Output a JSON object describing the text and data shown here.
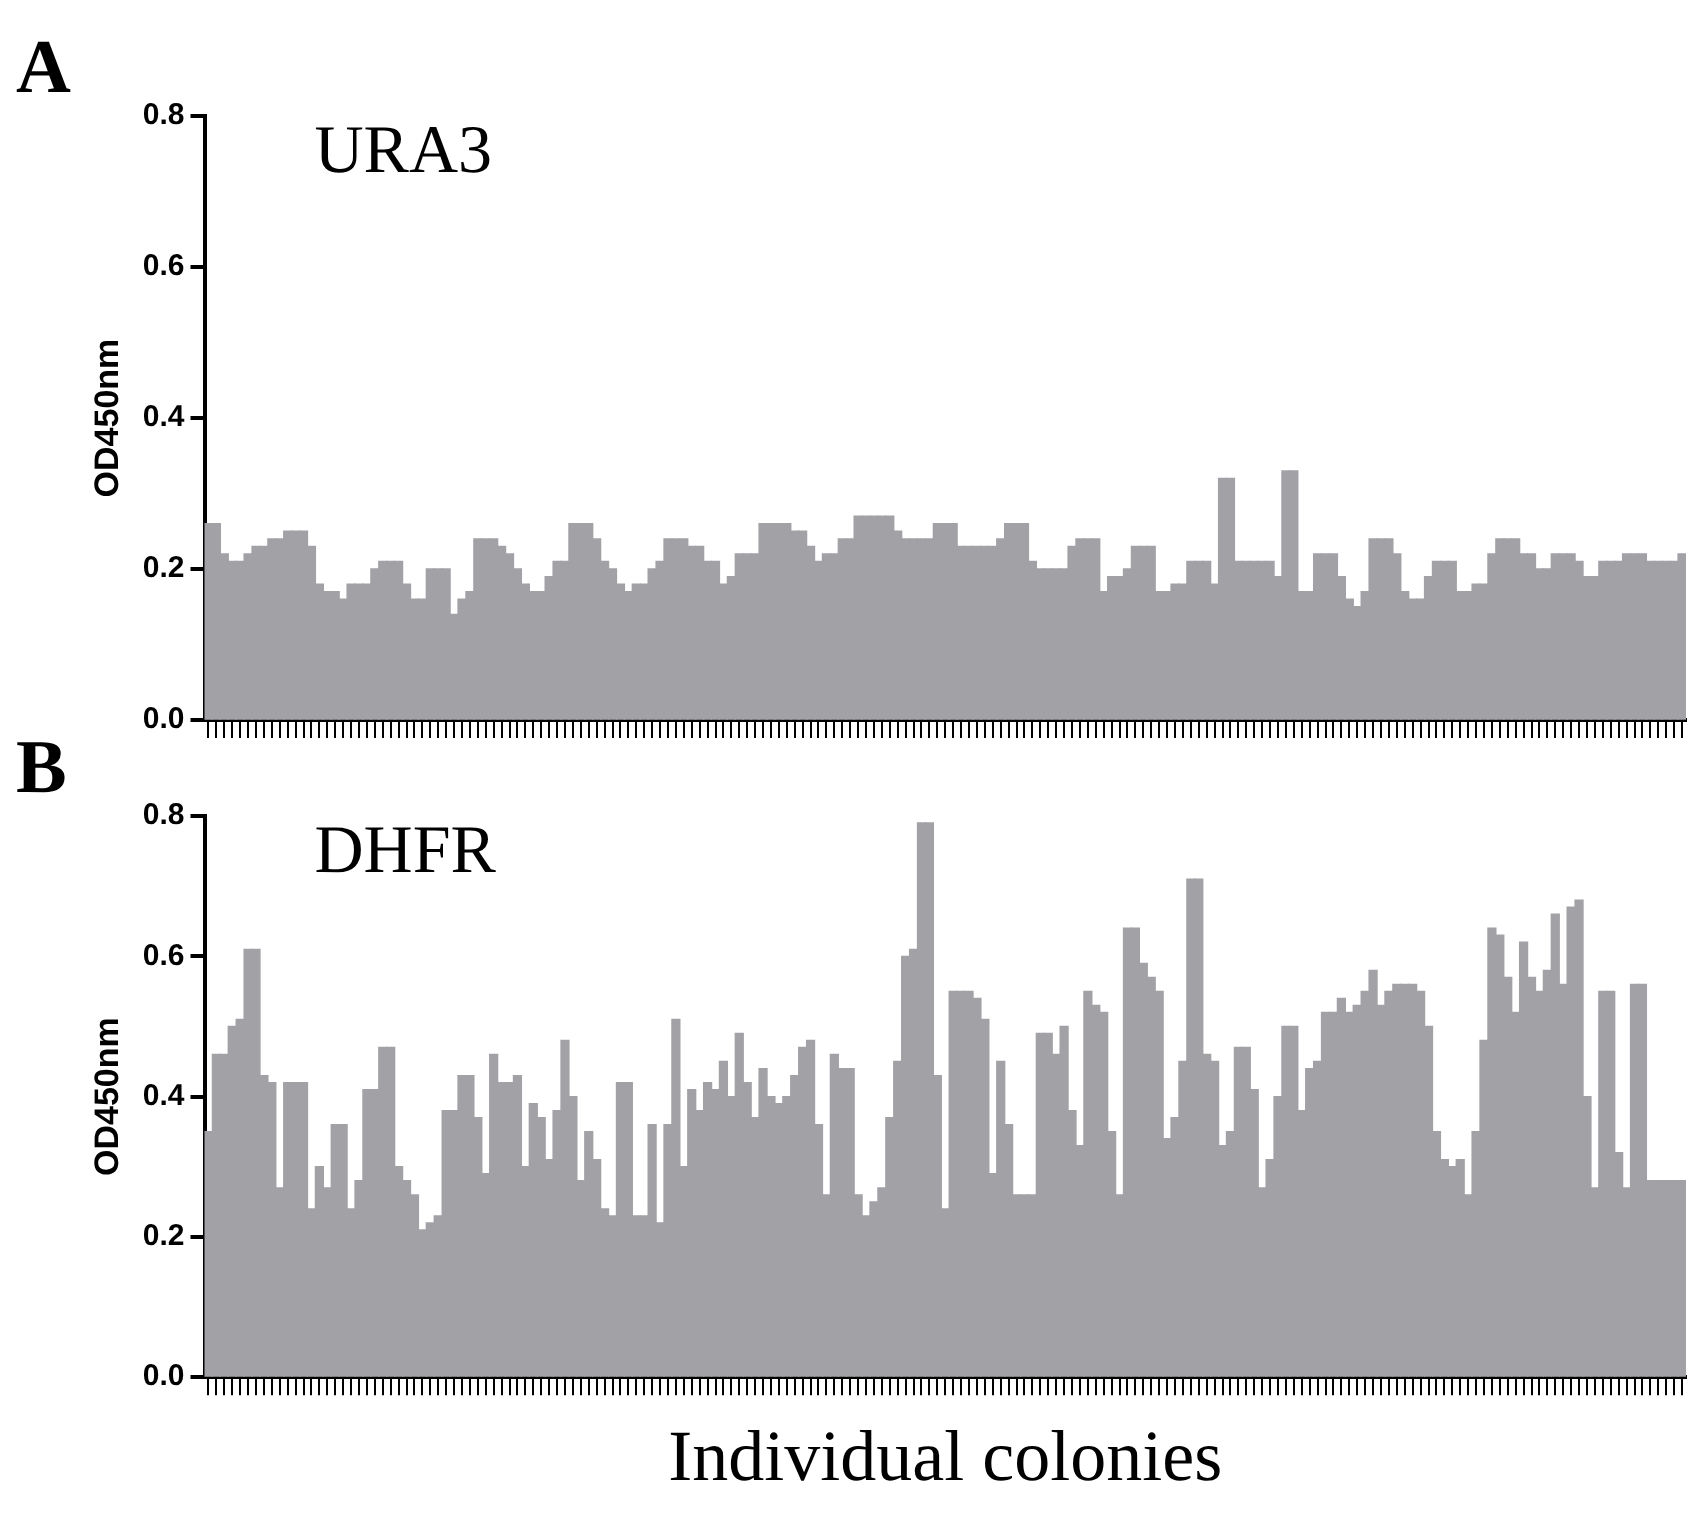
{
  "chart_data": [
    {
      "type": "bar",
      "title": "URA3",
      "ylabel": "OD450nm",
      "annotations": [
        "A"
      ],
      "color": "#a2a1a6",
      "ylim": [
        0,
        0.8
      ],
      "yticks": [
        {
          "value": 0,
          "label": "0.0"
        },
        {
          "value": 0.2,
          "label": "0.2"
        },
        {
          "value": 0.4,
          "label": "0.4"
        },
        {
          "value": 0.6,
          "label": "0.6"
        },
        {
          "value": 0.8,
          "label": "0.8"
        }
      ],
      "grid": false,
      "legend": false,
      "categories": [
        null,
        null,
        null,
        null,
        null,
        null,
        null,
        null,
        null,
        null,
        null,
        null,
        null,
        null,
        null,
        null,
        null,
        null,
        null,
        null,
        null,
        null,
        null,
        null,
        null,
        null,
        null,
        null,
        null,
        null,
        null,
        null,
        null,
        null,
        null,
        null,
        null,
        null,
        null,
        null,
        null,
        null,
        null,
        null,
        null,
        null,
        null,
        null,
        null,
        null,
        null,
        null,
        null,
        null,
        null,
        null,
        null,
        null,
        null,
        null,
        null,
        null,
        null,
        null,
        null,
        null,
        null,
        null,
        null,
        null,
        null,
        null,
        null,
        null,
        null,
        null,
        null,
        null,
        null,
        null,
        null,
        null,
        null,
        null,
        null,
        null,
        null,
        null,
        null,
        null,
        null,
        null,
        null,
        null,
        null,
        null,
        null,
        null,
        null,
        null,
        null,
        null,
        null,
        null,
        null,
        null,
        null,
        null,
        null,
        null,
        null,
        null,
        null,
        null,
        null,
        null,
        null,
        null,
        null,
        null,
        null,
        null,
        null,
        null,
        null,
        null,
        null,
        null,
        null,
        null,
        null,
        null,
        null,
        null,
        null,
        null,
        null,
        null,
        null,
        null,
        null,
        null,
        null,
        null,
        null,
        null,
        null,
        null,
        null,
        null,
        null,
        null,
        null,
        null,
        null,
        null,
        null,
        null,
        null,
        null,
        null,
        null,
        null,
        null,
        null,
        null,
        null,
        null,
        null,
        null,
        null,
        null,
        null,
        null,
        null,
        null,
        null,
        null,
        null,
        null,
        null,
        null,
        null,
        null,
        null,
        null,
        null
      ],
      "values": [
        0.26,
        0.26,
        0.22,
        0.21,
        0.21,
        0.22,
        0.23,
        0.23,
        0.24,
        0.24,
        0.25,
        0.25,
        0.25,
        0.23,
        0.18,
        0.17,
        0.17,
        0.16,
        0.18,
        0.18,
        0.18,
        0.2,
        0.21,
        0.21,
        0.21,
        0.18,
        0.16,
        0.16,
        0.2,
        0.2,
        0.2,
        0.14,
        0.16,
        0.17,
        0.24,
        0.24,
        0.24,
        0.23,
        0.22,
        0.2,
        0.18,
        0.17,
        0.17,
        0.19,
        0.21,
        0.21,
        0.26,
        0.26,
        0.26,
        0.24,
        0.21,
        0.2,
        0.18,
        0.17,
        0.18,
        0.18,
        0.2,
        0.21,
        0.24,
        0.24,
        0.24,
        0.23,
        0.23,
        0.21,
        0.21,
        0.18,
        0.19,
        0.22,
        0.22,
        0.22,
        0.26,
        0.26,
        0.26,
        0.26,
        0.25,
        0.25,
        0.23,
        0.21,
        0.22,
        0.22,
        0.24,
        0.24,
        0.27,
        0.27,
        0.27,
        0.27,
        0.27,
        0.25,
        0.24,
        0.24,
        0.24,
        0.24,
        0.26,
        0.26,
        0.26,
        0.23,
        0.23,
        0.23,
        0.23,
        0.23,
        0.24,
        0.26,
        0.26,
        0.26,
        0.21,
        0.2,
        0.2,
        0.2,
        0.2,
        0.23,
        0.24,
        0.24,
        0.24,
        0.17,
        0.19,
        0.19,
        0.2,
        0.23,
        0.23,
        0.23,
        0.17,
        0.17,
        0.18,
        0.18,
        0.21,
        0.21,
        0.21,
        0.18,
        0.32,
        0.32,
        0.21,
        0.21,
        0.21,
        0.21,
        0.21,
        0.19,
        0.33,
        0.33,
        0.17,
        0.17,
        0.22,
        0.22,
        0.22,
        0.19,
        0.16,
        0.15,
        0.17,
        0.24,
        0.24,
        0.24,
        0.22,
        0.17,
        0.16,
        0.16,
        0.19,
        0.21,
        0.21,
        0.21,
        0.17,
        0.17,
        0.18,
        0.18,
        0.22,
        0.24,
        0.24,
        0.24,
        0.22,
        0.22,
        0.2,
        0.2,
        0.22,
        0.22,
        0.22,
        0.21,
        0.19,
        0.19,
        0.21,
        0.21,
        0.21,
        0.22,
        0.22,
        0.22,
        0.21,
        0.21,
        0.21,
        0.21,
        0.22
      ]
    },
    {
      "type": "bar",
      "title": "DHFR",
      "ylabel": "OD450nm",
      "xlabel": "Individual colonies",
      "annotations": [
        "B"
      ],
      "color": "#a2a1a6",
      "ylim": [
        0,
        0.8
      ],
      "yticks": [
        {
          "value": 0,
          "label": "0.0"
        },
        {
          "value": 0.2,
          "label": "0.2"
        },
        {
          "value": 0.4,
          "label": "0.4"
        },
        {
          "value": 0.6,
          "label": "0.6"
        },
        {
          "value": 0.8,
          "label": "0.8"
        }
      ],
      "grid": false,
      "legend": false,
      "categories": [
        null,
        null,
        null,
        null,
        null,
        null,
        null,
        null,
        null,
        null,
        null,
        null,
        null,
        null,
        null,
        null,
        null,
        null,
        null,
        null,
        null,
        null,
        null,
        null,
        null,
        null,
        null,
        null,
        null,
        null,
        null,
        null,
        null,
        null,
        null,
        null,
        null,
        null,
        null,
        null,
        null,
        null,
        null,
        null,
        null,
        null,
        null,
        null,
        null,
        null,
        null,
        null,
        null,
        null,
        null,
        null,
        null,
        null,
        null,
        null,
        null,
        null,
        null,
        null,
        null,
        null,
        null,
        null,
        null,
        null,
        null,
        null,
        null,
        null,
        null,
        null,
        null,
        null,
        null,
        null,
        null,
        null,
        null,
        null,
        null,
        null,
        null,
        null,
        null,
        null,
        null,
        null,
        null,
        null,
        null,
        null,
        null,
        null,
        null,
        null,
        null,
        null,
        null,
        null,
        null,
        null,
        null,
        null,
        null,
        null,
        null,
        null,
        null,
        null,
        null,
        null,
        null,
        null,
        null,
        null,
        null,
        null,
        null,
        null,
        null,
        null,
        null,
        null,
        null,
        null,
        null,
        null,
        null,
        null,
        null,
        null,
        null,
        null,
        null,
        null,
        null,
        null,
        null,
        null,
        null,
        null,
        null,
        null,
        null,
        null,
        null,
        null,
        null,
        null,
        null,
        null,
        null,
        null,
        null,
        null,
        null,
        null,
        null,
        null,
        null,
        null,
        null,
        null,
        null,
        null,
        null,
        null,
        null,
        null,
        null,
        null,
        null,
        null,
        null,
        null,
        null,
        null,
        null,
        null,
        null,
        null,
        null
      ],
      "values": [
        0.35,
        0.46,
        0.46,
        0.5,
        0.51,
        0.61,
        0.61,
        0.43,
        0.42,
        0.27,
        0.42,
        0.42,
        0.42,
        0.24,
        0.3,
        0.27,
        0.36,
        0.36,
        0.24,
        0.28,
        0.41,
        0.41,
        0.47,
        0.47,
        0.3,
        0.28,
        0.26,
        0.21,
        0.22,
        0.23,
        0.38,
        0.38,
        0.43,
        0.43,
        0.37,
        0.29,
        0.46,
        0.42,
        0.42,
        0.43,
        0.3,
        0.39,
        0.37,
        0.31,
        0.38,
        0.48,
        0.4,
        0.28,
        0.35,
        0.31,
        0.24,
        0.23,
        0.42,
        0.42,
        0.23,
        0.23,
        0.36,
        0.22,
        0.36,
        0.51,
        0.3,
        0.41,
        0.38,
        0.42,
        0.41,
        0.45,
        0.4,
        0.49,
        0.42,
        0.37,
        0.44,
        0.4,
        0.39,
        0.4,
        0.43,
        0.47,
        0.48,
        0.36,
        0.26,
        0.46,
        0.44,
        0.44,
        0.26,
        0.23,
        0.25,
        0.27,
        0.37,
        0.45,
        0.6,
        0.61,
        0.79,
        0.79,
        0.43,
        0.24,
        0.55,
        0.55,
        0.55,
        0.54,
        0.51,
        0.29,
        0.45,
        0.36,
        0.26,
        0.26,
        0.26,
        0.49,
        0.49,
        0.46,
        0.5,
        0.38,
        0.33,
        0.55,
        0.53,
        0.52,
        0.35,
        0.26,
        0.64,
        0.64,
        0.59,
        0.57,
        0.55,
        0.34,
        0.37,
        0.45,
        0.71,
        0.71,
        0.46,
        0.45,
        0.33,
        0.35,
        0.47,
        0.47,
        0.41,
        0.27,
        0.31,
        0.4,
        0.5,
        0.5,
        0.38,
        0.44,
        0.45,
        0.52,
        0.52,
        0.54,
        0.52,
        0.53,
        0.55,
        0.58,
        0.53,
        0.55,
        0.56,
        0.56,
        0.56,
        0.55,
        0.5,
        0.35,
        0.31,
        0.3,
        0.31,
        0.26,
        0.35,
        0.48,
        0.64,
        0.63,
        0.57,
        0.52,
        0.62,
        0.57,
        0.55,
        0.58,
        0.66,
        0.56,
        0.67,
        0.68,
        0.4,
        0.27,
        0.55,
        0.55,
        0.32,
        0.27,
        0.56,
        0.56,
        0.28,
        0.28,
        0.28,
        0.28,
        0.28
      ]
    }
  ]
}
